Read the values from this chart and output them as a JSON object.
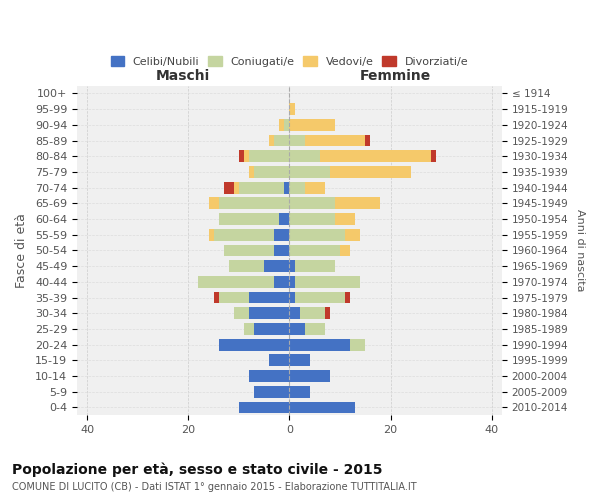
{
  "age_groups": [
    "0-4",
    "5-9",
    "10-14",
    "15-19",
    "20-24",
    "25-29",
    "30-34",
    "35-39",
    "40-44",
    "45-49",
    "50-54",
    "55-59",
    "60-64",
    "65-69",
    "70-74",
    "75-79",
    "80-84",
    "85-89",
    "90-94",
    "95-99",
    "100+"
  ],
  "birth_years": [
    "2010-2014",
    "2005-2009",
    "2000-2004",
    "1995-1999",
    "1990-1994",
    "1985-1989",
    "1980-1984",
    "1975-1979",
    "1970-1974",
    "1965-1969",
    "1960-1964",
    "1955-1959",
    "1950-1954",
    "1945-1949",
    "1940-1944",
    "1935-1939",
    "1930-1934",
    "1925-1929",
    "1920-1924",
    "1915-1919",
    "≤ 1914"
  ],
  "maschi": {
    "celibi": [
      10,
      7,
      8,
      4,
      14,
      7,
      8,
      8,
      3,
      5,
      3,
      3,
      2,
      0,
      1,
      0,
      0,
      0,
      0,
      0,
      0
    ],
    "coniugati": [
      0,
      0,
      0,
      0,
      0,
      2,
      3,
      6,
      15,
      7,
      10,
      12,
      12,
      14,
      9,
      7,
      8,
      3,
      1,
      0,
      0
    ],
    "vedovi": [
      0,
      0,
      0,
      0,
      0,
      0,
      0,
      0,
      0,
      0,
      0,
      1,
      0,
      2,
      1,
      1,
      1,
      1,
      1,
      0,
      0
    ],
    "divorziati": [
      0,
      0,
      0,
      0,
      0,
      0,
      0,
      1,
      0,
      0,
      0,
      0,
      0,
      0,
      2,
      0,
      1,
      0,
      0,
      0,
      0
    ]
  },
  "femmine": {
    "nubili": [
      13,
      4,
      8,
      4,
      12,
      3,
      2,
      1,
      1,
      1,
      0,
      0,
      0,
      0,
      0,
      0,
      0,
      0,
      0,
      0,
      0
    ],
    "coniugate": [
      0,
      0,
      0,
      0,
      3,
      4,
      5,
      10,
      13,
      8,
      10,
      11,
      9,
      9,
      3,
      8,
      6,
      3,
      0,
      0,
      0
    ],
    "vedove": [
      0,
      0,
      0,
      0,
      0,
      0,
      0,
      0,
      0,
      0,
      2,
      3,
      4,
      9,
      4,
      16,
      22,
      12,
      9,
      1,
      0
    ],
    "divorziate": [
      0,
      0,
      0,
      0,
      0,
      0,
      1,
      1,
      0,
      0,
      0,
      0,
      0,
      0,
      0,
      0,
      1,
      1,
      0,
      0,
      0
    ]
  },
  "colors": {
    "celibi_nubili": "#4472c4",
    "coniugati": "#c5d5a0",
    "vedovi": "#f5c96a",
    "divorziati": "#c0392b"
  },
  "xlim": 42,
  "title": "Popolazione per età, sesso e stato civile - 2015",
  "subtitle": "COMUNE DI LUCITO (CB) - Dati ISTAT 1° gennaio 2015 - Elaborazione TUTTITALIA.IT",
  "ylabel": "Fasce di età",
  "ylabel_right": "Anni di nascita"
}
